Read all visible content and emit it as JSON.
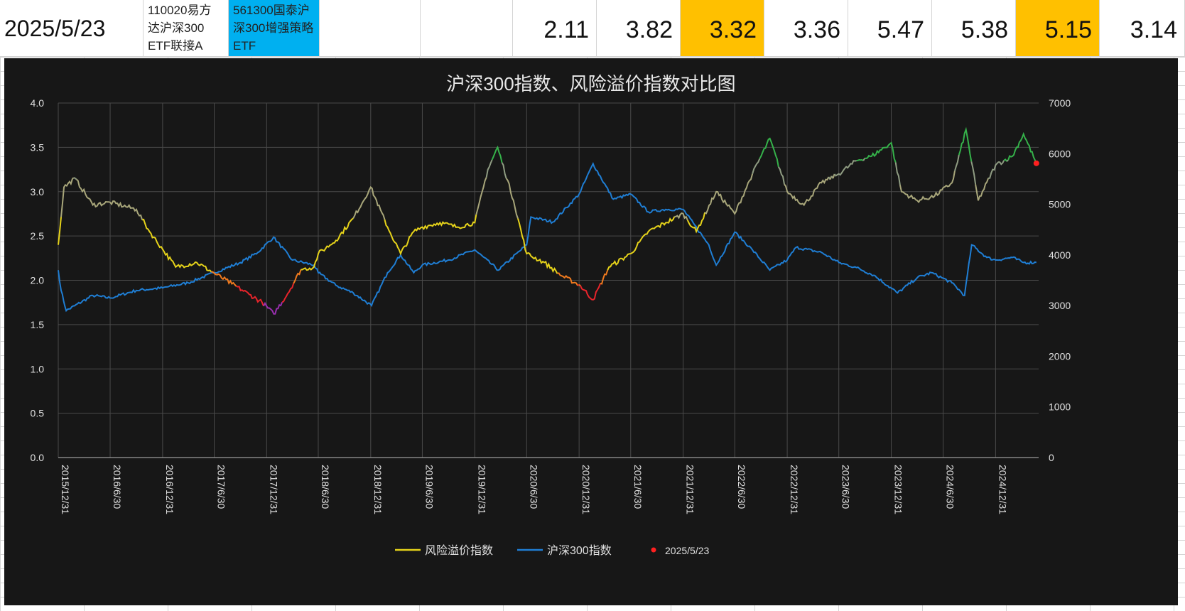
{
  "header": {
    "date": "2025/5/23",
    "fund1": "110020易方\n达沪深300\nETF联接A",
    "fund2": "561300国泰沪\n深300增强策略\nETF",
    "values": [
      {
        "text": "2.11",
        "highlight": false
      },
      {
        "text": "3.82",
        "highlight": false
      },
      {
        "text": "3.32",
        "highlight": true
      },
      {
        "text": "3.36",
        "highlight": false
      },
      {
        "text": "5.47",
        "highlight": false
      },
      {
        "text": "5.38",
        "highlight": false
      },
      {
        "text": "5.15",
        "highlight": true
      },
      {
        "text": "3.14",
        "highlight": false
      }
    ]
  },
  "colors": {
    "highlight": "#ffc000",
    "fund2_bg": "#00b0f0",
    "chart_bg": "#171717",
    "index_line": "#1f7ed4",
    "marker": "#ff2020"
  },
  "chart_data": {
    "type": "line",
    "title": "沪深300指数、风险溢价指数对比图",
    "x_ticks": [
      "2015/12/31",
      "2016/6/30",
      "2016/12/31",
      "2017/6/30",
      "2017/12/31",
      "2018/6/30",
      "2018/12/31",
      "2019/6/30",
      "2019/12/31",
      "2020/6/30",
      "2020/12/31",
      "2021/6/30",
      "2021/12/31",
      "2022/6/30",
      "2022/12/31",
      "2023/6/30",
      "2023/12/31",
      "2024/6/30",
      "2024/12/31"
    ],
    "x_range": [
      "2015/12/31",
      "2025/5/31"
    ],
    "y_left": {
      "range": [
        0,
        4.0
      ],
      "ticks": [
        "0.0",
        "0.5",
        "1.0",
        "1.5",
        "2.0",
        "2.5",
        "3.0",
        "3.5",
        "4.0"
      ]
    },
    "y_right": {
      "range": [
        0,
        7000
      ],
      "ticks": [
        "0",
        "1000",
        "2000",
        "3000",
        "4000",
        "5000",
        "6000",
        "7000"
      ]
    },
    "grid": true,
    "legend": "bottom",
    "legend_entries": [
      "风险溢价指数",
      "沪深300指数",
      "2025/5/23"
    ],
    "series": [
      {
        "name": "风险溢价指数",
        "axis": "left",
        "x": [
          "2015/12/31",
          "2016/1/20",
          "2016/2/28",
          "2016/4/30",
          "2016/6/30",
          "2016/9/30",
          "2016/11/15",
          "2016/12/31",
          "2017/2/15",
          "2017/4/30",
          "2017/6/30",
          "2017/8/31",
          "2017/10/31",
          "2017/12/15",
          "2018/1/25",
          "2018/3/15",
          "2018/4/30",
          "2018/6/15",
          "2018/6/30",
          "2018/8/31",
          "2018/10/31",
          "2018/12/31",
          "2019/2/28",
          "2019/4/15",
          "2019/5/31",
          "2019/6/30",
          "2019/8/31",
          "2019/10/31",
          "2019/12/31",
          "2020/2/15",
          "2020/3/20",
          "2020/5/15",
          "2020/6/30",
          "2020/8/31",
          "2020/10/31",
          "2020/12/31",
          "2021/2/18",
          "2021/4/15",
          "2021/6/30",
          "2021/8/31",
          "2021/10/31",
          "2021/12/31",
          "2022/2/15",
          "2022/4/26",
          "2022/6/30",
          "2022/8/31",
          "2022/10/31",
          "2022/12/31",
          "2023/2/28",
          "2023/4/30",
          "2023/6/30",
          "2023/8/31",
          "2023/10/23",
          "2023/12/31",
          "2024/2/5",
          "2024/3/31",
          "2024/5/31",
          "2024/7/31",
          "2024/9/18",
          "2024/10/31",
          "2024/12/31",
          "2025/2/28",
          "2025/4/8",
          "2025/5/23"
        ],
        "values": [
          2.4,
          3.05,
          3.15,
          2.85,
          2.88,
          2.8,
          2.55,
          2.35,
          2.15,
          2.2,
          2.08,
          1.96,
          1.84,
          1.75,
          1.62,
          1.85,
          2.12,
          2.15,
          2.3,
          2.45,
          2.7,
          3.05,
          2.6,
          2.3,
          2.55,
          2.6,
          2.65,
          2.6,
          2.65,
          3.25,
          3.5,
          2.9,
          2.3,
          2.2,
          2.05,
          1.95,
          1.78,
          2.15,
          2.3,
          2.55,
          2.65,
          2.75,
          2.55,
          3.0,
          2.75,
          3.2,
          3.6,
          3.0,
          2.85,
          3.1,
          3.2,
          3.35,
          3.4,
          3.55,
          3.0,
          2.9,
          2.95,
          3.1,
          3.7,
          2.9,
          3.3,
          3.4,
          3.65,
          3.32
        ]
      },
      {
        "name": "沪深300指数",
        "axis": "right",
        "x": [
          "2015/12/31",
          "2016/1/10",
          "2016/1/28",
          "2016/4/30",
          "2016/6/30",
          "2016/9/30",
          "2016/12/31",
          "2017/3/31",
          "2017/6/30",
          "2017/9/30",
          "2017/11/30",
          "2018/1/24",
          "2018/3/31",
          "2018/6/15",
          "2018/6/30",
          "2018/8/31",
          "2018/10/31",
          "2019/1/3",
          "2019/2/28",
          "2019/4/15",
          "2019/5/31",
          "2019/6/30",
          "2019/9/30",
          "2019/12/31",
          "2020/3/23",
          "2020/6/30",
          "2020/7/15",
          "2020/9/30",
          "2020/12/31",
          "2021/2/18",
          "2021/4/30",
          "2021/6/30",
          "2021/8/31",
          "2021/10/31",
          "2021/12/31",
          "2022/3/31",
          "2022/4/26",
          "2022/6/30",
          "2022/8/31",
          "2022/10/31",
          "2022/12/31",
          "2023/1/31",
          "2023/4/30",
          "2023/6/30",
          "2023/8/31",
          "2023/10/31",
          "2024/1/22",
          "2024/3/31",
          "2024/5/20",
          "2024/7/31",
          "2024/9/13",
          "2024/10/8",
          "2024/11/30",
          "2024/12/31",
          "2025/2/28",
          "2025/4/8",
          "2025/5/23"
        ],
        "values": [
          3700,
          3300,
          2900,
          3200,
          3150,
          3300,
          3350,
          3450,
          3650,
          3850,
          4050,
          4350,
          3900,
          3800,
          3650,
          3400,
          3250,
          3000,
          3650,
          4000,
          3650,
          3800,
          3900,
          4100,
          3700,
          4200,
          4750,
          4650,
          5200,
          5800,
          5100,
          5200,
          4850,
          4900,
          4900,
          4200,
          3800,
          4450,
          4100,
          3700,
          3900,
          4150,
          4050,
          3850,
          3750,
          3600,
          3250,
          3550,
          3650,
          3450,
          3200,
          4200,
          3950,
          3900,
          3950,
          3850,
          3850
        ]
      },
      {
        "name": "2025/5/23",
        "axis": "left",
        "x": [
          "2025/5/23"
        ],
        "values": [
          3.32
        ]
      }
    ]
  }
}
